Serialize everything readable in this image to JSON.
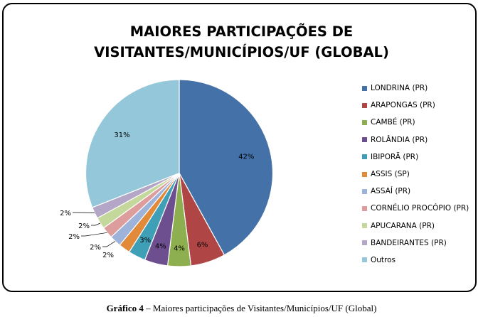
{
  "chart_data": {
    "type": "pie",
    "title_lines": [
      "MAIORES PARTICIPAÇÕES DE",
      "VISITANTES/MUNICÍPIOS/UF (GLOBAL)"
    ],
    "slices": [
      {
        "label": "LONDRINA (PR)",
        "value": 42,
        "value_label": "42%",
        "color": "#4472A8"
      },
      {
        "label": "ARAPONGAS  (PR)",
        "value": 6,
        "value_label": "6%",
        "color": "#B04545"
      },
      {
        "label": "CAMBÉ  (PR)",
        "value": 4,
        "value_label": "4%",
        "color": "#8EAF4F"
      },
      {
        "label": "ROLÂNDIA (PR)",
        "value": 4,
        "value_label": "4%",
        "color": "#6D4E8F"
      },
      {
        "label": "IBIPORÃ  (PR)",
        "value": 3,
        "value_label": "3%",
        "color": "#3F9FB6"
      },
      {
        "label": "ASSIS  (SP)",
        "value": 2,
        "value_label": "2%",
        "color": "#E08A3A"
      },
      {
        "label": "ASSAÍ (PR)",
        "value": 2,
        "value_label": "2%",
        "color": "#9DB3DA"
      },
      {
        "label": "CORNÉLIO PROCÓPIO  (PR)",
        "value": 2,
        "value_label": "2%",
        "color": "#DE9D9D"
      },
      {
        "label": "APUCARANA  (PR)",
        "value": 2,
        "value_label": "2%",
        "color": "#C5D89B"
      },
      {
        "label": "BANDEIRANTES (PR)",
        "value": 2,
        "value_label": "2%",
        "color": "#B3A6C6"
      },
      {
        "label": "Outros",
        "value": 31,
        "value_label": "31%",
        "color": "#93C7D9"
      }
    ],
    "legend_position": "right"
  },
  "caption": {
    "bold": "Gráfico 4",
    "text": " – Maiores participações de Visitantes/Municípios/UF (Global)"
  }
}
